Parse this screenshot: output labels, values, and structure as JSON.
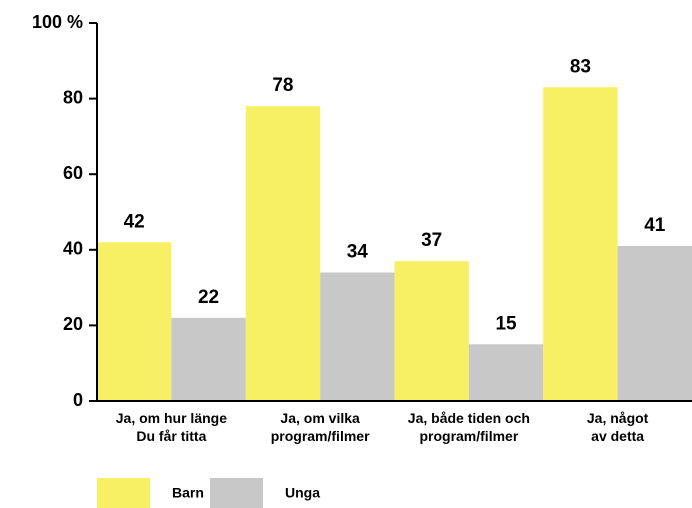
{
  "chart_data": {
    "type": "bar",
    "categories": [
      "Ja, om hur länge\nDu får titta",
      "Ja, om vilka\nprogram/filmer",
      "Ja, både tiden och\nprogram/filmer",
      "Ja, något\nav detta"
    ],
    "series": [
      {
        "name": "Barn",
        "color": "#f8f064",
        "values": [
          42,
          78,
          37,
          83
        ]
      },
      {
        "name": "Unga",
        "color": "#c8c8c8",
        "values": [
          22,
          34,
          15,
          41
        ]
      }
    ],
    "ylim": [
      0,
      100
    ],
    "yticks": [
      0,
      20,
      40,
      60,
      80,
      {
        "value": 100,
        "label": "100 %"
      }
    ],
    "grid": false
  }
}
